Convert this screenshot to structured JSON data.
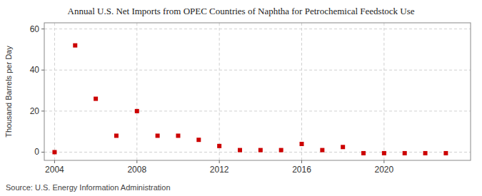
{
  "chart_data": {
    "type": "scatter",
    "title": "Annual U.S. Net Imports from OPEC Countries of Naphtha for Petrochemical Feedstock Use",
    "y_label": "Thousand Barrels per Day",
    "source": "Source: U.S. Energy Information Administration",
    "x": [
      2004,
      2005,
      2006,
      2007,
      2008,
      2009,
      2010,
      2011,
      2012,
      2013,
      2014,
      2015,
      2016,
      2017,
      2018,
      2019,
      2020,
      2021,
      2022,
      2023
    ],
    "values": [
      0.0,
      52.0,
      26.0,
      8.0,
      20.0,
      8.0,
      8.0,
      6.0,
      3.0,
      1.0,
      1.0,
      1.0,
      4.0,
      1.0,
      2.5,
      -0.5,
      -0.5,
      -0.5,
      -0.5,
      -0.5
    ],
    "color": "#cc0000",
    "marker": "square",
    "xlim": [
      2003.5,
      2024.2
    ],
    "xticks": [
      2004,
      2008,
      2012,
      2016,
      2020
    ],
    "ylim": [
      -4,
      63
    ],
    "yticks": [
      0,
      20,
      40,
      60
    ],
    "grid": true
  }
}
